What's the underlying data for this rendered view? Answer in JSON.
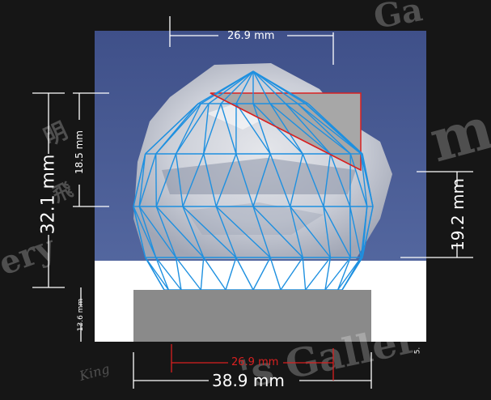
{
  "dimensions": {
    "top_width": "26.9 mm",
    "left_height_total": "32.1 mm",
    "left_height_upper": "18.5 mm",
    "left_height_lower": "13.6 mm",
    "right_height": "19.2 mm",
    "bottom_width_outer": "38.9 mm",
    "bottom_width_inner": "26.9 mm",
    "right_small_label": "5."
  },
  "watermark": {
    "tl": "明",
    "tl2": "飛",
    "left": "ery",
    "top": "Ga",
    "right": "m",
    "bottom": "'s Galler",
    "bottom_small": "King"
  },
  "colors": {
    "background": "#161616",
    "photo_blue": "#44588f",
    "mesh": "#1e90e0",
    "base": "#8a8a8a",
    "accent": "#d92020"
  },
  "icons": [
    "gem-mesh-icon",
    "crystal-photo",
    "cross-section-highlight"
  ]
}
